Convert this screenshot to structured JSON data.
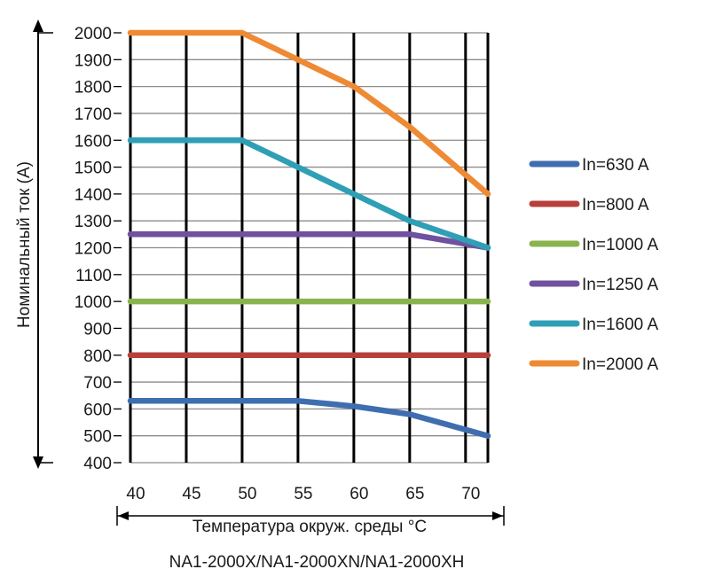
{
  "chart_data": {
    "type": "line",
    "title": "",
    "xlabel": "Температура окруж. среды °C",
    "ylabel": "Номинальный ток (A)",
    "caption": "NA1-2000X/NA1-2000XN/NA1-2000XH",
    "xlim": [
      40,
      72
    ],
    "ylim": [
      400,
      2000
    ],
    "x_ticks": [
      40,
      45,
      50,
      55,
      60,
      65,
      70
    ],
    "y_ticks": [
      400,
      500,
      600,
      700,
      800,
      900,
      1000,
      1100,
      1200,
      1300,
      1400,
      1500,
      1600,
      1700,
      1800,
      1900,
      2000
    ],
    "vertical_gridlines_x": [
      40,
      45,
      50,
      55,
      60,
      65,
      70,
      72
    ],
    "grid": true,
    "legend_position": "right",
    "series": [
      {
        "name": "In=630 A",
        "color": "#3f6eb0",
        "x": [
          40,
          50,
          55,
          60,
          65,
          72
        ],
        "y": [
          630,
          630,
          630,
          610,
          580,
          500
        ]
      },
      {
        "name": "In=800 A",
        "color": "#b8403b",
        "x": [
          40,
          72
        ],
        "y": [
          800,
          800
        ]
      },
      {
        "name": "In=1000 A",
        "color": "#8ab34e",
        "x": [
          40,
          72
        ],
        "y": [
          1000,
          1000
        ]
      },
      {
        "name": "In=1250 A",
        "color": "#6f51a0",
        "x": [
          40,
          50,
          65,
          72
        ],
        "y": [
          1250,
          1250,
          1250,
          1200
        ]
      },
      {
        "name": "In=1600 A",
        "color": "#2e9fb5",
        "x": [
          40,
          50,
          55,
          60,
          65,
          72
        ],
        "y": [
          1600,
          1600,
          1500,
          1400,
          1300,
          1200
        ]
      },
      {
        "name": "In=2000 A",
        "color": "#ef8a34",
        "x": [
          40,
          50,
          55,
          60,
          65,
          72
        ],
        "y": [
          2000,
          2000,
          1900,
          1800,
          1650,
          1400
        ]
      }
    ]
  }
}
